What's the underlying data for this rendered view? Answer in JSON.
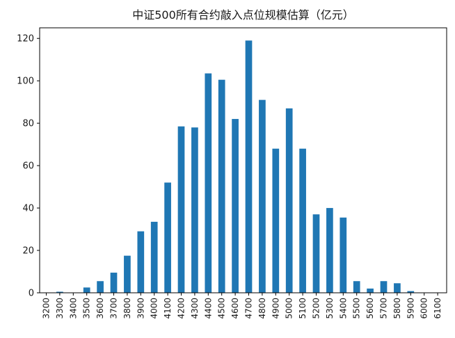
{
  "chart_data": {
    "type": "bar",
    "title": "中证500所有合约敲入点位规模估算（亿元）",
    "xlabel": "",
    "ylabel": "",
    "ylim": [
      0,
      125
    ],
    "yticks": [
      0,
      20,
      40,
      60,
      80,
      100,
      120
    ],
    "grid": false,
    "legend": "none",
    "bar_color": "#1f77b4",
    "categories": [
      "3200",
      "3300",
      "3400",
      "3500",
      "3600",
      "3700",
      "3800",
      "3900",
      "4000",
      "4100",
      "4200",
      "4300",
      "4400",
      "4500",
      "4600",
      "4700",
      "4800",
      "4900",
      "5000",
      "5100",
      "5200",
      "5300",
      "5400",
      "5500",
      "5600",
      "5700",
      "5800",
      "5900",
      "6000",
      "6100"
    ],
    "values": [
      0,
      0.5,
      0,
      2.5,
      5.5,
      9.5,
      17.5,
      29,
      33.5,
      52,
      78.5,
      78,
      103.5,
      100.5,
      82,
      119,
      91,
      68,
      87,
      68,
      37,
      40,
      35.5,
      5.5,
      2,
      5.5,
      4.5,
      0.8,
      0,
      0
    ]
  }
}
